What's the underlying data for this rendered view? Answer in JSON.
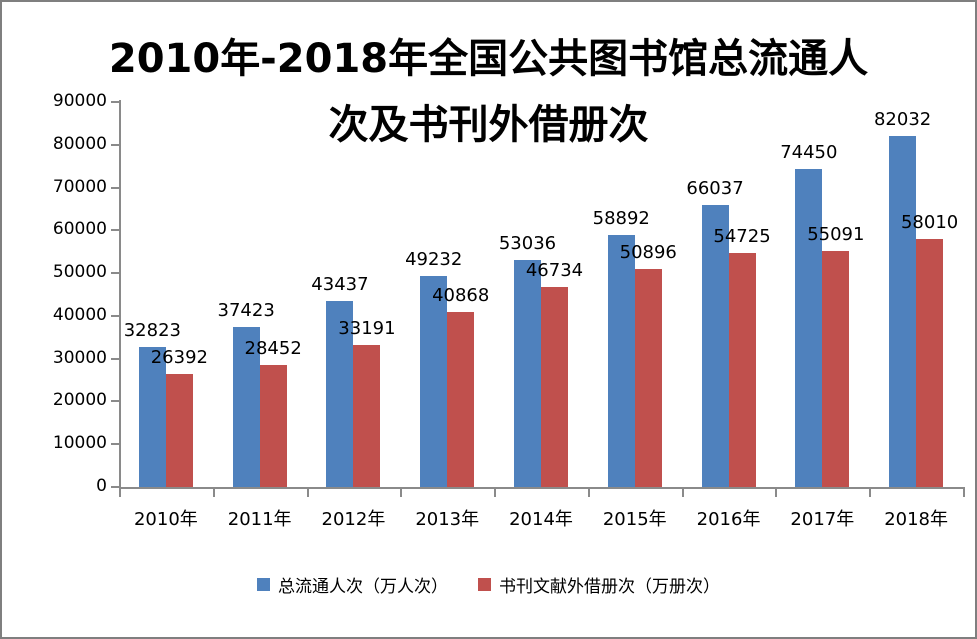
{
  "figure": {
    "title_line1": "2010年-2018年全国公共图书馆总流通人",
    "title_line2": "次及书刊外借册次"
  },
  "chart_data": {
    "type": "bar",
    "title": "2010年-2018年全国公共图书馆总流通人次及书刊外借册次",
    "categories": [
      "2010年",
      "2011年",
      "2012年",
      "2013年",
      "2014年",
      "2015年",
      "2016年",
      "2017年",
      "2018年"
    ],
    "series": [
      {
        "name": "总流通人次（万人次）",
        "color": "#4F81BD",
        "values": [
          32823,
          37423,
          43437,
          49232,
          53036,
          58892,
          66037,
          74450,
          82032
        ]
      },
      {
        "name": "书刊文献外借册次（万册次）",
        "color": "#C0504D",
        "values": [
          26392,
          28452,
          33191,
          40868,
          46734,
          50896,
          54725,
          55091,
          58010
        ]
      }
    ],
    "xlabel": "",
    "ylabel": "",
    "ylim": [
      0,
      90000
    ],
    "ytick_step": 10000,
    "ytick_labels": [
      "0",
      "10000",
      "20000",
      "30000",
      "40000",
      "50000",
      "60000",
      "70000",
      "80000",
      "90000"
    ],
    "grid": false,
    "legend_position": "bottom",
    "data_labels": true,
    "axis_color": "#8A8A8A",
    "text_color": "#000000",
    "background_color": "#FFFFFF",
    "border_color": "#7F7F7F"
  }
}
